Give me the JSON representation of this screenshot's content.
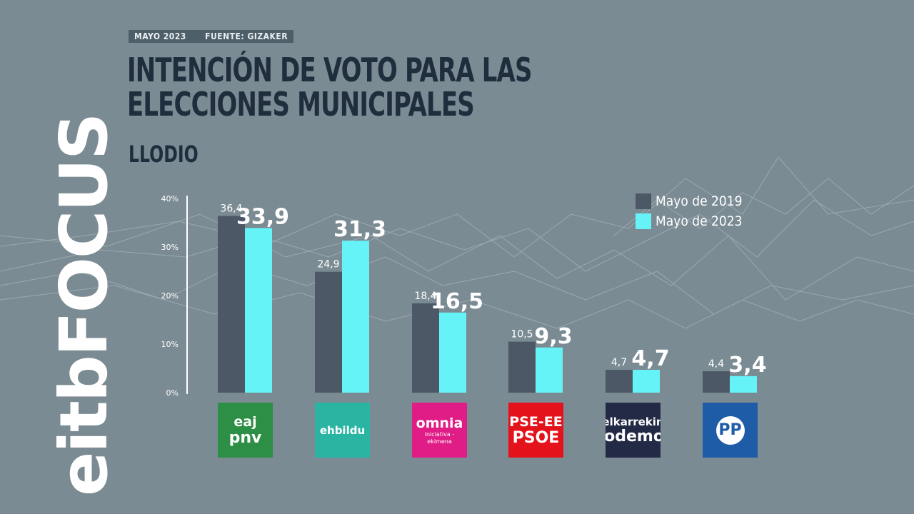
{
  "brand": "eitbFOCUS",
  "header": {
    "date": "MAYO 2023",
    "source": "FUENTE: GIZAKER",
    "title": "INTENCIÓN DE VOTO PARA LAS ELECCIONES MUNICIPALES",
    "subtitle": "LLODIO"
  },
  "colors": {
    "background": "#7b8b93",
    "series_2019": "#4d5866",
    "series_2023": "#66f3f7",
    "title": "#1f2d3d"
  },
  "legend": [
    {
      "label": "Mayo de 2019",
      "color": "#4d5866"
    },
    {
      "label": "Mayo de 2023",
      "color": "#66f3f7"
    }
  ],
  "parties": [
    {
      "logo_lines": [
        "eaj",
        "pnv"
      ],
      "color": "#2d8f45",
      "text_color": "#ffffff"
    },
    {
      "logo_lines": [
        "ehbildu"
      ],
      "color": "#2ab5a3",
      "text_color": "#ffffff"
    },
    {
      "logo_lines": [
        "omnia",
        "iniciativa - ekimena"
      ],
      "color": "#e01c86",
      "text_color": "#ffffff"
    },
    {
      "logo_lines": [
        "PSE-EE",
        "PSOE"
      ],
      "color": "#e3121b",
      "text_color": "#ffffff"
    },
    {
      "logo_lines": [
        "elkarrekin",
        "Podemos"
      ],
      "color": "#222a45",
      "text_color": "#ffffff"
    },
    {
      "logo_lines": [
        "PP"
      ],
      "color": "#1f5ca8",
      "text_color": "#1f5ca8"
    }
  ],
  "chart_data": {
    "type": "bar",
    "categories": [
      "EAJ-PNV",
      "EH Bildu",
      "Omnia",
      "PSE-EE (PSOE)",
      "Elkarrekin Podemos",
      "PP"
    ],
    "series": [
      {
        "name": "Mayo de 2019",
        "values": [
          36.4,
          24.9,
          18.4,
          10.5,
          4.7,
          4.4
        ],
        "labels": [
          "36,4",
          "24,9",
          "18,4",
          "10,5",
          "4,7",
          "4,4"
        ]
      },
      {
        "name": "Mayo de 2023",
        "values": [
          33.9,
          31.3,
          16.5,
          9.3,
          4.7,
          3.4
        ],
        "labels": [
          "33,9",
          "31,3",
          "16,5",
          "9,3",
          "4,7",
          "3,4"
        ]
      }
    ],
    "ylim": [
      0,
      40
    ],
    "yticks": [
      "0%",
      "10%",
      "20%",
      "30%",
      "40%"
    ],
    "grid": false,
    "legend_position": "top-right"
  }
}
